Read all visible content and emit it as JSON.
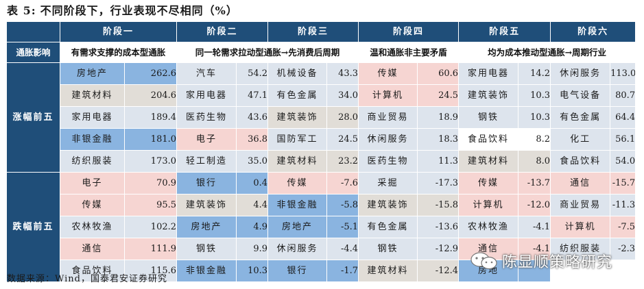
{
  "title": {
    "label": "表 5:",
    "text": "不同阶段下，行业表现不尽相同（%）"
  },
  "header": {
    "stages": [
      "阶段一",
      "阶段二",
      "阶段三",
      "阶段四",
      "阶段五",
      "阶段六"
    ],
    "row_label": "通胀影响",
    "descriptions": [
      "有需求支撑的成本型通胀",
      "同一轮需求拉动型通胀→先消费后周期",
      "温和通胀非主要矛盾",
      "均为成本推动型通胀→周期行业"
    ]
  },
  "groups": [
    {
      "label": "涨幅前五",
      "rows": [
        [
          {
            "name": "房地产",
            "value": "262.6",
            "color": "blue"
          },
          {
            "name": "汽车",
            "value": "54.2",
            "color": "default"
          },
          {
            "name": "机械设备",
            "value": "43.3",
            "color": "default"
          },
          {
            "name": "传媒",
            "value": "60.6",
            "color": "pink"
          },
          {
            "name": "家用电器",
            "value": "14.2",
            "color": "default"
          },
          {
            "name": "休闲服务",
            "value": "113.0",
            "color": "default"
          }
        ],
        [
          {
            "name": "建筑材料",
            "value": "204.6",
            "color": "grey"
          },
          {
            "name": "家用电器",
            "value": "47.1",
            "color": "default"
          },
          {
            "name": "有色金属",
            "value": "34.0",
            "color": "default"
          },
          {
            "name": "计算机",
            "value": "24.5",
            "color": "pink"
          },
          {
            "name": "建筑装饰",
            "value": "10.3",
            "color": "default"
          },
          {
            "name": "电气设备",
            "value": "80.7",
            "color": "default"
          }
        ],
        [
          {
            "name": "家用电器",
            "value": "189.4",
            "color": "default"
          },
          {
            "name": "医药生物",
            "value": "43.6",
            "color": "default"
          },
          {
            "name": "建筑装饰",
            "value": "28.0",
            "color": "grey"
          },
          {
            "name": "商业贸易",
            "value": "18.9",
            "color": "default"
          },
          {
            "name": "钢铁",
            "value": "10.3",
            "color": "default"
          },
          {
            "name": "有色金属",
            "value": "64.4",
            "color": "default"
          }
        ],
        [
          {
            "name": "非银金融",
            "value": "181.0",
            "color": "blue"
          },
          {
            "name": "电子",
            "value": "36.8",
            "color": "pink"
          },
          {
            "name": "国防军工",
            "value": "24.5",
            "color": "default"
          },
          {
            "name": "休闲服务",
            "value": "18.3",
            "color": "default"
          },
          {
            "name": "食品饮料",
            "value": "8.2",
            "color": "white"
          },
          {
            "name": "化工",
            "value": "56.1",
            "color": "default"
          }
        ],
        [
          {
            "name": "纺织服装",
            "value": "173.0",
            "color": "default"
          },
          {
            "name": "轻工制造",
            "value": "35.0",
            "color": "default"
          },
          {
            "name": "建筑材料",
            "value": "23.2",
            "color": "grey"
          },
          {
            "name": "医药生物",
            "value": "11.3",
            "color": "default"
          },
          {
            "name": "建筑材料",
            "value": "8.0",
            "color": "grey"
          },
          {
            "name": "食品饮料",
            "value": "54.0",
            "color": "default"
          }
        ]
      ]
    },
    {
      "label": "跌幅前五",
      "rows": [
        [
          {
            "name": "电子",
            "value": "70.9",
            "color": "pink"
          },
          {
            "name": "银行",
            "value": "0.4",
            "color": "blue"
          },
          {
            "name": "传媒",
            "value": "-7.6",
            "color": "pink"
          },
          {
            "name": "采掘",
            "value": "-17.3",
            "color": "default"
          },
          {
            "name": "传媒",
            "value": "-13.7",
            "color": "pink"
          },
          {
            "name": "通信",
            "value": "-15.7",
            "color": "pink"
          }
        ],
        [
          {
            "name": "传媒",
            "value": "95.5",
            "color": "pink"
          },
          {
            "name": "建筑装饰",
            "value": "4.4",
            "color": "grey"
          },
          {
            "name": "非银金融",
            "value": "-5.8",
            "color": "blue"
          },
          {
            "name": "建筑装饰",
            "value": "-15.8",
            "color": "grey"
          },
          {
            "name": "计算机",
            "value": "-12.0",
            "color": "pink"
          },
          {
            "name": "商业贸易",
            "value": "-11.3",
            "color": "default"
          }
        ],
        [
          {
            "name": "农林牧渔",
            "value": "102.2",
            "color": "default"
          },
          {
            "name": "房地产",
            "value": "4.9",
            "color": "blue"
          },
          {
            "name": "房地产",
            "value": "-5.1",
            "color": "blue"
          },
          {
            "name": "有色金属",
            "value": "-13.6",
            "color": "default"
          },
          {
            "name": "农林牧渔",
            "value": "-4.1",
            "color": "default"
          },
          {
            "name": "计算机",
            "value": "-7.5",
            "color": "pink"
          }
        ],
        [
          {
            "name": "通信",
            "value": "111.9",
            "color": "pink"
          },
          {
            "name": "钢铁",
            "value": "9.9",
            "color": "default"
          },
          {
            "name": "休闲服务",
            "value": "-4.4",
            "color": "default"
          },
          {
            "name": "钢铁",
            "value": "-12.9",
            "color": "default"
          },
          {
            "name": "通信",
            "value": "-4.1",
            "color": "pink"
          },
          {
            "name": "纺织服装",
            "value": "-2.3",
            "color": "default"
          }
        ],
        [
          {
            "name": "食品饮料",
            "value": "115.6",
            "color": "default"
          },
          {
            "name": "非银金融",
            "value": "10.3",
            "color": "blue"
          },
          {
            "name": "银行",
            "value": "-1.7",
            "color": "blue"
          },
          {
            "name": "建筑材料",
            "value": "-12.4",
            "color": "grey"
          },
          {
            "name": "房地",
            "value": "",
            "color": "blue"
          },
          {
            "name": "",
            "value": "",
            "color": "white"
          }
        ]
      ]
    }
  ],
  "source": "数据来源：Wind，国泰君安证券研究",
  "watermark": "陈显顺策略研究",
  "colors": {
    "header_bg": "#1f4e79",
    "default": "#dde4ed",
    "blue": "#8ab4e0",
    "pink": "#f6d5d2",
    "grey": "#e1ddd7",
    "white": "#ffffff"
  }
}
